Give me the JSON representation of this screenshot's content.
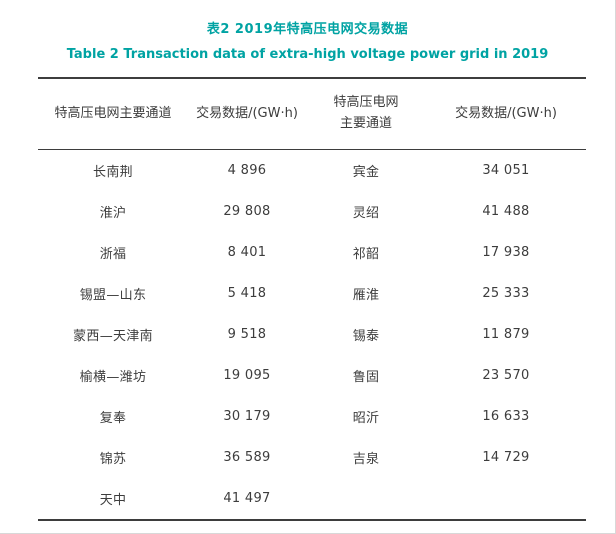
{
  "accent_color": "#00A3A3",
  "titles": {
    "zh": "表2 2019年特高压电网交易数据",
    "en": "Table 2 Transaction data of extra-high voltage power grid in 2019"
  },
  "table": {
    "headers": [
      "特高压电网主要通道",
      "交易数据/(GW·h)",
      "特高压电网\n主要通道",
      "交易数据/(GW·h)"
    ],
    "rows": [
      [
        "长南荆",
        "4 896",
        "宾金",
        "34 051"
      ],
      [
        "淮沪",
        "29 808",
        "灵绍",
        "41 488"
      ],
      [
        "浙福",
        "8 401",
        "祁韶",
        "17 938"
      ],
      [
        "锡盟—山东",
        "5 418",
        "雁淮",
        "25 333"
      ],
      [
        "蒙西—天津南",
        "9 518",
        "锡泰",
        "11 879"
      ],
      [
        "榆横—潍坊",
        "19 095",
        "鲁固",
        "23 570"
      ],
      [
        "复奉",
        "30 179",
        "昭沂",
        "16 633"
      ],
      [
        "锦苏",
        "36 589",
        "吉泉",
        "14 729"
      ],
      [
        "天中",
        "41 497",
        "",
        ""
      ]
    ]
  }
}
